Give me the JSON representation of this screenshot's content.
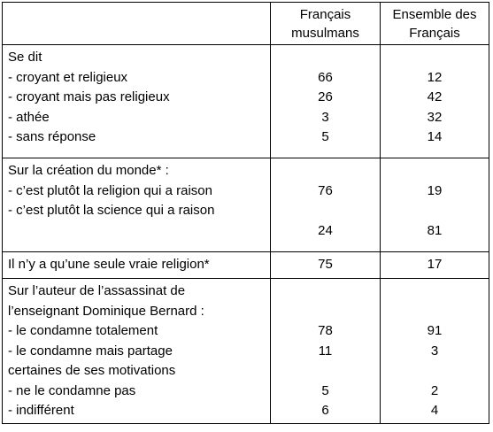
{
  "header": {
    "col2": "Français musulmans",
    "col3": "Ensemble des Français"
  },
  "sections": [
    {
      "lines": [
        {
          "label": "Se dit",
          "musulmans": null,
          "ensemble": null
        },
        {
          "label": "- croyant et religieux",
          "musulmans": 66,
          "ensemble": 12
        },
        {
          "label": "- croyant mais pas religieux",
          "musulmans": 26,
          "ensemble": 42
        },
        {
          "label": "- athée",
          "musulmans": 3,
          "ensemble": 32
        },
        {
          "label": "- sans réponse",
          "musulmans": 5,
          "ensemble": 14
        }
      ]
    },
    {
      "lines": [
        {
          "label": "Sur la création du monde* :",
          "musulmans": null,
          "ensemble": null
        },
        {
          "label": "- c’est plutôt la religion qui a raison",
          "musulmans": 76,
          "ensemble": 19
        },
        {
          "label": "- c’est plutôt la science qui a raison",
          "musulmans": null,
          "ensemble": null
        },
        {
          "label": null,
          "musulmans": 24,
          "ensemble": 81
        }
      ]
    },
    {
      "lines": [
        {
          "label": "Il n’y a qu’une seule vraie religion*",
          "musulmans": 75,
          "ensemble": 17
        }
      ]
    },
    {
      "lines": [
        {
          "label": "Sur l’auteur de l’assassinat de",
          "musulmans": null,
          "ensemble": null
        },
        {
          "label": "l’enseignant Dominique Bernard :",
          "musulmans": null,
          "ensemble": null
        },
        {
          "label": "- le condamne totalement",
          "musulmans": 78,
          "ensemble": 91
        },
        {
          "label": "- le condamne mais partage",
          "musulmans": 11,
          "ensemble": 3
        },
        {
          "label": "certaines de ses motivations",
          "musulmans": null,
          "ensemble": null
        },
        {
          "label": "- ne le condamne pas",
          "musulmans": 5,
          "ensemble": 2
        },
        {
          "label": "- indifférent",
          "musulmans": 6,
          "ensemble": 4
        }
      ]
    }
  ]
}
